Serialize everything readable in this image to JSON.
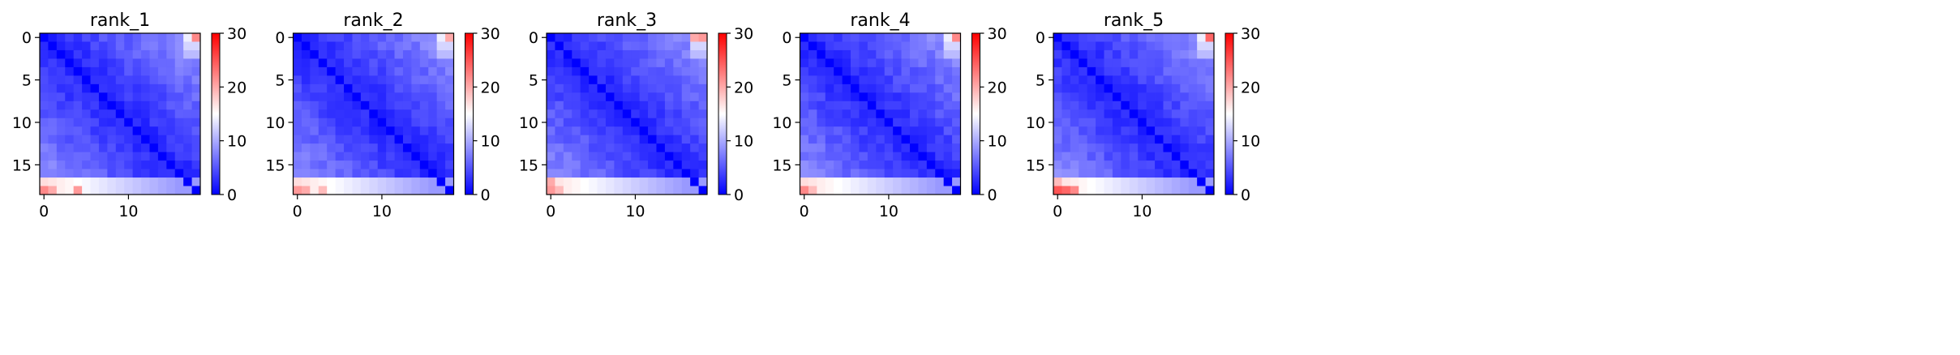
{
  "chart_data": [
    {
      "type": "heatmap",
      "title": "rank_1",
      "xlabel": "",
      "ylabel": "",
      "xticks": [
        0,
        10
      ],
      "yticks": [
        0,
        5,
        10,
        15
      ],
      "size": 19,
      "colormap": "bwr",
      "colors": {
        "low": "#0000ff",
        "mid": "#ffffff",
        "high": "#ff0000"
      },
      "vmin": 0,
      "vmax": 30,
      "colorbar_ticks": [
        0,
        10,
        20,
        30
      ],
      "edge": {
        "near": 17,
        "far": 9
      },
      "corner": [
        [
          0,
          18,
          22
        ],
        [
          18,
          0,
          22
        ],
        [
          17,
          0,
          17
        ],
        [
          18,
          1,
          20
        ],
        [
          18,
          4,
          21
        ]
      ]
    },
    {
      "type": "heatmap",
      "title": "rank_2",
      "xlabel": "",
      "ylabel": "",
      "xticks": [
        0,
        10
      ],
      "yticks": [
        0,
        5,
        10,
        15
      ],
      "size": 19,
      "colormap": "bwr",
      "colors": {
        "low": "#0000ff",
        "mid": "#ffffff",
        "high": "#ff0000"
      },
      "vmin": 0,
      "vmax": 30,
      "colorbar_ticks": [
        0,
        10,
        20,
        30
      ],
      "edge": {
        "near": 17,
        "far": 9
      },
      "corner": [
        [
          0,
          18,
          20
        ],
        [
          18,
          0,
          21
        ],
        [
          18,
          1,
          20
        ],
        [
          17,
          0,
          17
        ],
        [
          18,
          3,
          19
        ]
      ]
    },
    {
      "type": "heatmap",
      "title": "rank_3",
      "xlabel": "",
      "ylabel": "",
      "xticks": [
        0,
        10
      ],
      "yticks": [
        0,
        5,
        10,
        15
      ],
      "size": 19,
      "colormap": "bwr",
      "colors": {
        "low": "#0000ff",
        "mid": "#ffffff",
        "high": "#ff0000"
      },
      "vmin": 0,
      "vmax": 30,
      "colorbar_ticks": [
        0,
        10,
        20,
        30
      ],
      "edge": {
        "near": 17,
        "far": 9
      },
      "corner": [
        [
          0,
          18,
          21
        ],
        [
          0,
          17,
          20
        ],
        [
          18,
          0,
          21
        ],
        [
          17,
          0,
          20
        ],
        [
          18,
          1,
          19
        ]
      ]
    },
    {
      "type": "heatmap",
      "title": "rank_4",
      "xlabel": "",
      "ylabel": "",
      "xticks": [
        0,
        10
      ],
      "yticks": [
        0,
        5,
        10,
        15
      ],
      "size": 19,
      "colormap": "bwr",
      "colors": {
        "low": "#0000ff",
        "mid": "#ffffff",
        "high": "#ff0000"
      },
      "vmin": 0,
      "vmax": 30,
      "colorbar_ticks": [
        0,
        10,
        20,
        30
      ],
      "edge": {
        "near": 17,
        "far": 9
      },
      "corner": [
        [
          0,
          18,
          22
        ],
        [
          18,
          0,
          22
        ],
        [
          17,
          0,
          17
        ],
        [
          18,
          1,
          19
        ]
      ]
    },
    {
      "type": "heatmap",
      "title": "rank_5",
      "xlabel": "",
      "ylabel": "",
      "xticks": [
        0,
        10
      ],
      "yticks": [
        0,
        5,
        10,
        15
      ],
      "size": 19,
      "colormap": "bwr",
      "colors": {
        "low": "#0000ff",
        "mid": "#ffffff",
        "high": "#ff0000"
      },
      "vmin": 0,
      "vmax": 30,
      "colorbar_ticks": [
        0,
        10,
        20,
        30
      ],
      "edge": {
        "near": 17,
        "far": 9
      },
      "corner": [
        [
          0,
          18,
          24
        ],
        [
          18,
          0,
          25
        ],
        [
          18,
          1,
          24
        ],
        [
          18,
          2,
          22
        ],
        [
          17,
          0,
          19
        ]
      ]
    }
  ]
}
